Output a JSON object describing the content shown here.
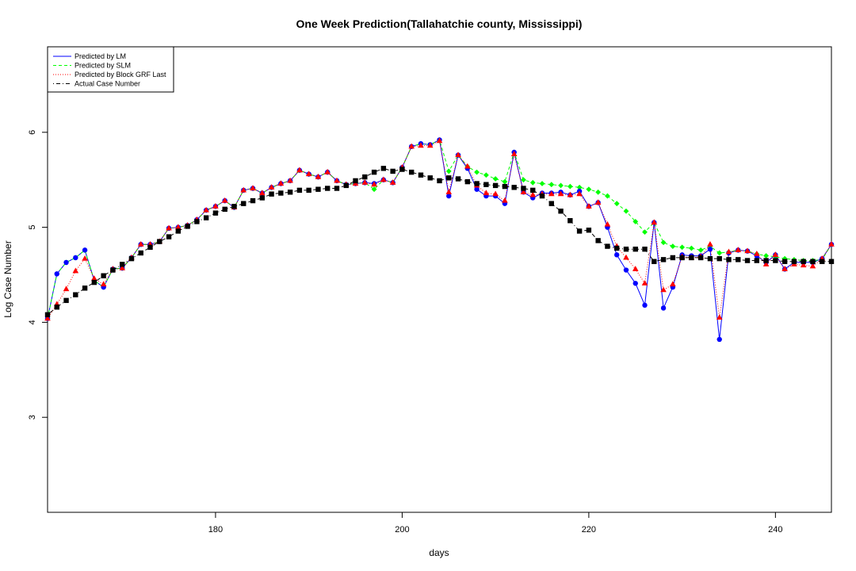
{
  "chart_data": {
    "type": "line",
    "title": "One Week Prediction(Tallahatchie county, Mississippi)",
    "xlabel": "days",
    "ylabel": "Log Case Number",
    "xlim": [
      162,
      246
    ],
    "ylim": [
      2.0,
      6.9
    ],
    "x_ticks": [
      180,
      200,
      220,
      240
    ],
    "y_ticks": [
      3,
      4,
      5,
      6
    ],
    "legend_position": "top-left",
    "x": [
      162,
      163,
      164,
      165,
      166,
      167,
      168,
      169,
      170,
      171,
      172,
      173,
      174,
      175,
      176,
      177,
      178,
      179,
      180,
      181,
      182,
      183,
      184,
      185,
      186,
      187,
      188,
      189,
      190,
      191,
      192,
      193,
      194,
      195,
      196,
      197,
      198,
      199,
      200,
      201,
      202,
      203,
      204,
      205,
      206,
      207,
      208,
      209,
      210,
      211,
      212,
      213,
      214,
      215,
      216,
      217,
      218,
      219,
      220,
      221,
      222,
      223,
      224,
      225,
      226,
      227,
      228,
      229,
      230,
      231,
      232,
      233,
      234,
      235,
      236,
      237,
      238,
      239,
      240,
      241,
      242,
      243,
      244,
      245,
      246
    ],
    "series": [
      {
        "name": "Predicted by LM",
        "color": "#0000ff",
        "line_style": "solid",
        "marker": "circle",
        "values": [
          4.04,
          4.51,
          4.63,
          4.68,
          4.76,
          4.44,
          4.37,
          4.56,
          4.57,
          4.68,
          4.82,
          4.82,
          4.85,
          4.99,
          5.0,
          5.02,
          5.08,
          5.18,
          5.22,
          5.28,
          5.21,
          5.39,
          5.41,
          5.36,
          5.42,
          5.46,
          5.49,
          5.6,
          5.56,
          5.53,
          5.58,
          5.49,
          5.45,
          5.46,
          5.47,
          5.46,
          5.5,
          5.47,
          5.63,
          5.85,
          5.88,
          5.87,
          5.92,
          5.33,
          5.76,
          5.62,
          5.4,
          5.33,
          5.33,
          5.25,
          5.79,
          5.37,
          5.31,
          5.36,
          5.36,
          5.37,
          5.34,
          5.38,
          5.22,
          5.26,
          5.0,
          4.71,
          4.55,
          4.41,
          4.18,
          5.05,
          4.15,
          4.37,
          4.71,
          4.7,
          4.7,
          4.77,
          3.82,
          4.73,
          4.76,
          4.75,
          4.7,
          4.63,
          4.71,
          4.56,
          4.63,
          4.63,
          4.63,
          4.67,
          4.82
        ]
      },
      {
        "name": "Predicted by SLM",
        "color": "#00ff00",
        "line_style": "dashed",
        "marker": "diamond",
        "values": [
          4.04,
          4.51,
          4.63,
          4.68,
          4.76,
          4.44,
          4.37,
          4.56,
          4.57,
          4.68,
          4.82,
          4.82,
          4.85,
          4.99,
          5.0,
          5.02,
          5.08,
          5.18,
          5.22,
          5.28,
          5.21,
          5.39,
          5.41,
          5.36,
          5.42,
          5.46,
          5.49,
          5.6,
          5.56,
          5.53,
          5.58,
          5.49,
          5.45,
          5.46,
          5.47,
          5.4,
          5.5,
          5.47,
          5.63,
          5.85,
          5.88,
          5.87,
          5.92,
          5.59,
          5.76,
          5.64,
          5.58,
          5.55,
          5.51,
          5.48,
          5.79,
          5.5,
          5.47,
          5.46,
          5.45,
          5.44,
          5.43,
          5.42,
          5.4,
          5.37,
          5.33,
          5.25,
          5.17,
          5.06,
          4.95,
          5.05,
          4.84,
          4.8,
          4.79,
          4.78,
          4.76,
          4.8,
          4.73,
          4.74,
          4.76,
          4.75,
          4.72,
          4.7,
          4.69,
          4.67,
          4.66,
          4.65,
          4.65,
          4.66,
          4.82
        ]
      },
      {
        "name": "Predicted by Block GRF Last",
        "color": "#ff0000",
        "line_style": "dotted",
        "marker": "triangle",
        "values": [
          4.04,
          4.19,
          4.35,
          4.54,
          4.67,
          4.46,
          4.4,
          4.56,
          4.57,
          4.68,
          4.82,
          4.82,
          4.85,
          4.99,
          5.0,
          5.02,
          5.08,
          5.18,
          5.22,
          5.28,
          5.21,
          5.39,
          5.41,
          5.36,
          5.42,
          5.46,
          5.49,
          5.6,
          5.56,
          5.53,
          5.58,
          5.49,
          5.45,
          5.46,
          5.47,
          5.45,
          5.5,
          5.47,
          5.63,
          5.85,
          5.86,
          5.86,
          5.91,
          5.37,
          5.76,
          5.64,
          5.44,
          5.36,
          5.35,
          5.28,
          5.77,
          5.37,
          5.34,
          5.35,
          5.35,
          5.35,
          5.34,
          5.35,
          5.22,
          5.26,
          5.03,
          4.8,
          4.68,
          4.56,
          4.41,
          5.05,
          4.34,
          4.4,
          4.69,
          4.68,
          4.69,
          4.82,
          4.05,
          4.74,
          4.76,
          4.75,
          4.72,
          4.61,
          4.71,
          4.56,
          4.61,
          4.6,
          4.59,
          4.67,
          4.82
        ]
      },
      {
        "name": "Actual Case Number",
        "color": "#000000",
        "line_style": "dotdash",
        "marker": "square",
        "values": [
          4.08,
          4.16,
          4.23,
          4.29,
          4.36,
          4.42,
          4.49,
          4.55,
          4.61,
          4.67,
          4.73,
          4.79,
          4.85,
          4.9,
          4.96,
          5.01,
          5.06,
          5.1,
          5.15,
          5.19,
          5.22,
          5.25,
          5.28,
          5.31,
          5.35,
          5.36,
          5.37,
          5.39,
          5.39,
          5.4,
          5.41,
          5.41,
          5.44,
          5.49,
          5.53,
          5.58,
          5.62,
          5.59,
          5.61,
          5.58,
          5.55,
          5.52,
          5.49,
          5.52,
          5.51,
          5.48,
          5.46,
          5.45,
          5.44,
          5.43,
          5.42,
          5.41,
          5.39,
          5.33,
          5.25,
          5.17,
          5.07,
          4.96,
          4.97,
          4.86,
          4.8,
          4.78,
          4.77,
          4.77,
          4.77,
          4.64,
          4.66,
          4.68,
          4.68,
          4.68,
          4.68,
          4.67,
          4.67,
          4.66,
          4.66,
          4.65,
          4.65,
          4.65,
          4.65,
          4.64,
          4.64,
          4.64,
          4.64,
          4.64,
          4.64
        ]
      }
    ]
  }
}
